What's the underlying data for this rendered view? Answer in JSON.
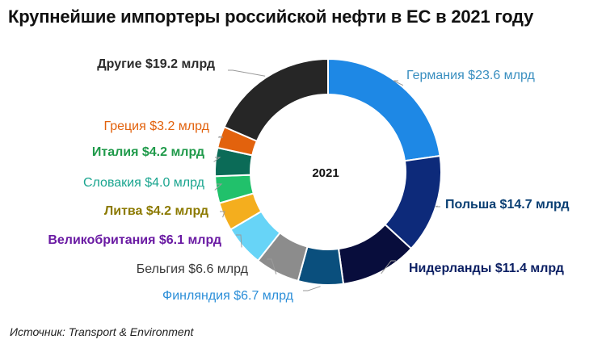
{
  "title": "Крупнейшие импортеры российской нефти в ЕС в 2021 году",
  "source": "Источник: Transport & Environment",
  "chart_data": {
    "type": "pie",
    "donut": true,
    "center_label": "2021",
    "unit_prefix": "$",
    "unit_suffix": " млрд",
    "slices": [
      {
        "name": "Германия",
        "label": "Германия $23.6 млрд",
        "value": 23.6,
        "color": "#1e88e5",
        "label_color": "#3a8fc0"
      },
      {
        "name": "Польша",
        "label": "Польша $14.7 млрд",
        "value": 14.7,
        "color": "#0d2a7a",
        "label_color": "#0a3f73"
      },
      {
        "name": "Нидерланды",
        "label": "Нидерланды $11.4 млрд",
        "value": 11.4,
        "color": "#080d3c",
        "label_color": "#0b1f63"
      },
      {
        "name": "Финляндия",
        "label": "Финляндия $6.7 млрд",
        "value": 6.7,
        "color": "#0a4f7d",
        "label_color": "#2b8ed8"
      },
      {
        "name": "Бельгия",
        "label": "Бельгия $6.6 млрд",
        "value": 6.6,
        "color": "#8c8c8c",
        "label_color": "#3a3a3a"
      },
      {
        "name": "Великобритания",
        "label": "Великобритания $6.1 млрд",
        "value": 6.1,
        "color": "#67d4f7",
        "label_color": "#6a1aa3"
      },
      {
        "name": "Литва",
        "label": "Литва $4.2 млрд",
        "value": 4.2,
        "color": "#f4ae1e",
        "label_color": "#8c7a00"
      },
      {
        "name": "Словакия",
        "label": "Словакия $4.0 млрд",
        "value": 4.0,
        "color": "#21c16b",
        "label_color": "#1aa58f"
      },
      {
        "name": "Италия",
        "label": "Италия $4.2 млрд",
        "value": 4.2,
        "color": "#0b6b57",
        "label_color": "#1f9a4a"
      },
      {
        "name": "Греция",
        "label": "Греция $3.2 млрд",
        "value": 3.2,
        "color": "#e2620d",
        "label_color": "#e2620d"
      },
      {
        "name": "Другие",
        "label": "Другие $19.2 млрд",
        "value": 19.2,
        "color": "#262626",
        "label_color": "#2a2a2a"
      }
    ]
  }
}
